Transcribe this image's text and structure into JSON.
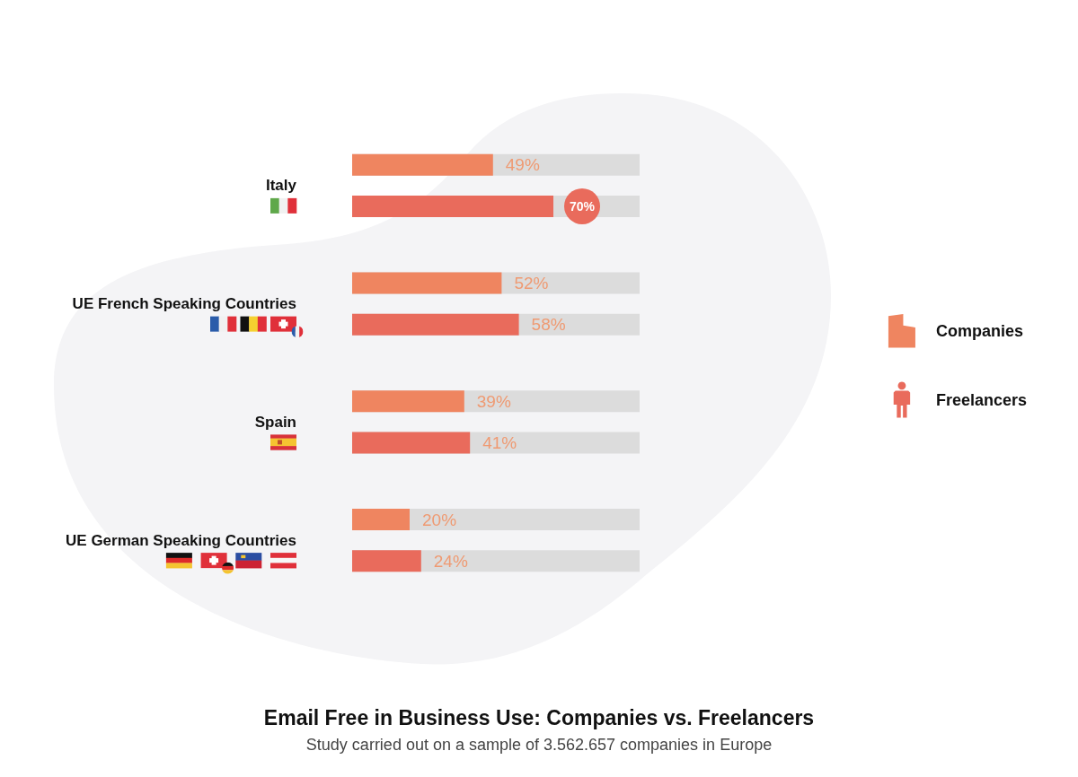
{
  "chart_data": {
    "type": "bar",
    "orientation": "horizontal",
    "title": "Email Free in Business Use: Companies vs. Freelancers",
    "subtitle": "Study carried out on a sample of 3.562.657 companies in Europe",
    "categories": [
      "Italy",
      "UE French Speaking Countries",
      "Spain",
      "UE German Speaking Countries"
    ],
    "series": [
      {
        "name": "Companies",
        "color": "#ef8560",
        "values": [
          49,
          52,
          39,
          20
        ],
        "value_labels": [
          "49%",
          "52%",
          "39%",
          "20%"
        ]
      },
      {
        "name": "Freelancers",
        "color": "#e96b5c",
        "values": [
          70,
          58,
          41,
          24
        ],
        "value_labels": [
          "70%",
          "58%",
          "41%",
          "24%"
        ]
      }
    ],
    "xlim": [
      0,
      100
    ],
    "tick_labels": "y",
    "grid": false,
    "legend": "right"
  }
}
